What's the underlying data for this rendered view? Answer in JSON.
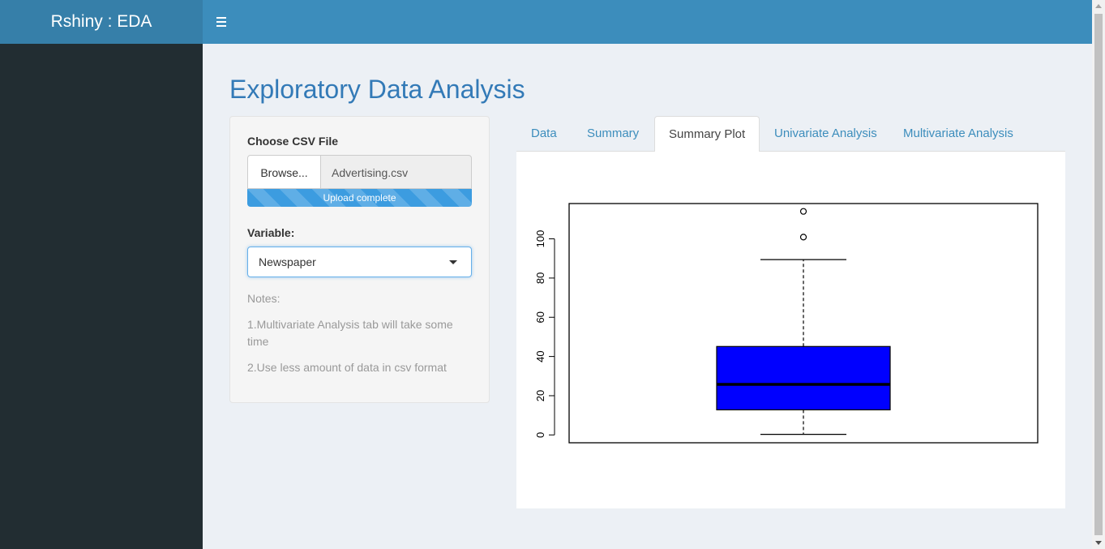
{
  "header": {
    "app_title": "Rshiny : EDA",
    "menu_icon": "hamburger-icon",
    "color": "#3c8dbc"
  },
  "main": {
    "page_title": "Exploratory Data Analysis"
  },
  "sidebar_panel": {
    "file_label": "Choose CSV File",
    "browse_label": "Browse...",
    "file_name": "Advertising.csv",
    "upload_status": "Upload complete",
    "upload_progress": 1.0,
    "variable_label": "Variable:",
    "variable_selected": "Newspaper",
    "notes_title": "Notes:",
    "note_1": "1.Multivariate Analysis tab will take some time",
    "note_2": "2.Use less amount of data in csv format"
  },
  "tabs": [
    {
      "label": "Data",
      "active": false
    },
    {
      "label": "Summary",
      "active": false
    },
    {
      "label": "Summary Plot",
      "active": true
    },
    {
      "label": "Univariate Analysis",
      "active": false
    },
    {
      "label": "Multivariate Analysis",
      "active": false
    }
  ],
  "chart_data": {
    "type": "boxplot",
    "ylim": [
      -4,
      118
    ],
    "y_ticks": [
      "0",
      "20",
      "40",
      "60",
      "80",
      "100"
    ],
    "y_tick_values": [
      0,
      20,
      40,
      60,
      80,
      100
    ],
    "box": {
      "min": 0.3,
      "q1": 12.8,
      "median": 25.8,
      "q3": 45.1,
      "max": 89.4,
      "outliers": [
        100.9,
        114.0
      ]
    },
    "box_color": "#0000ff",
    "grid": false
  }
}
